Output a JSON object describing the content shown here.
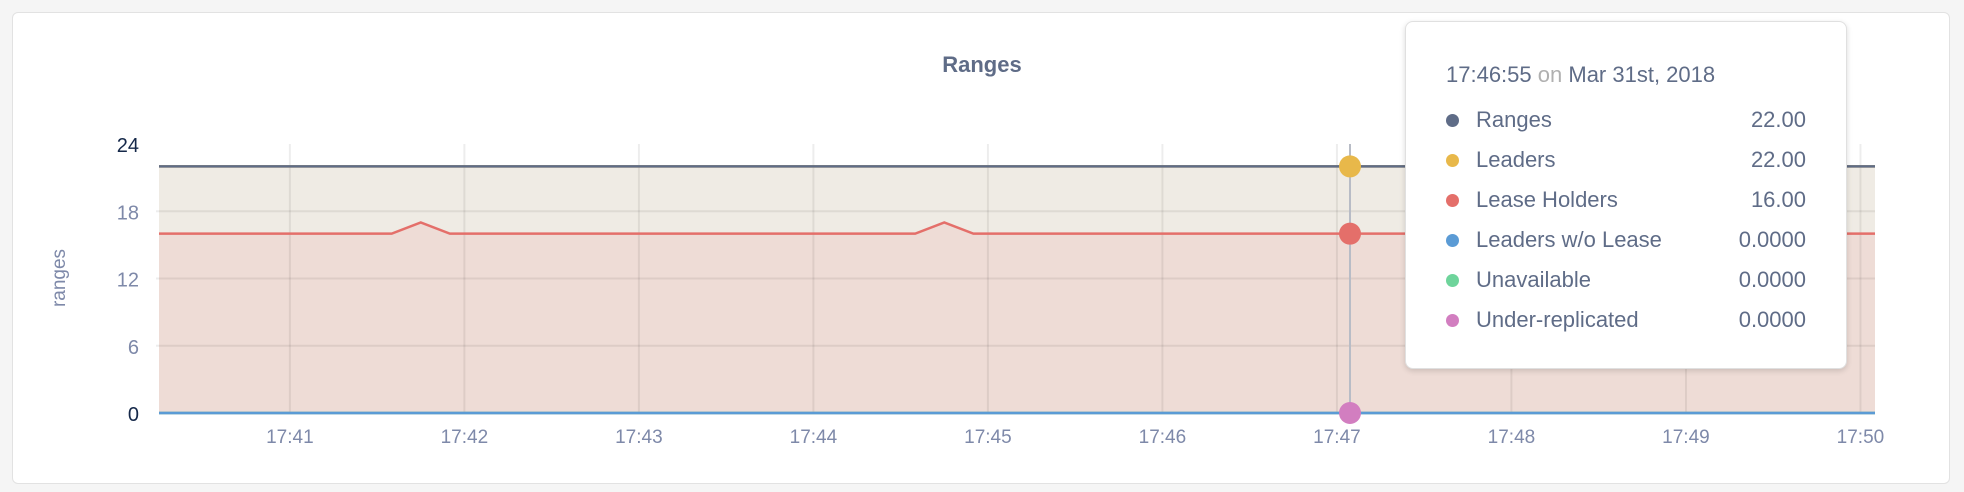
{
  "chart_data": {
    "type": "area",
    "title": "Ranges",
    "ylabel": "ranges",
    "ylim": [
      0,
      24
    ],
    "yticks": [
      "0",
      "6",
      "12",
      "18",
      "24"
    ],
    "xticks": [
      "17:41",
      "17:42",
      "17:43",
      "17:44",
      "17:45",
      "17:46",
      "17:47",
      "17:48",
      "17:49",
      "17:50"
    ],
    "xlim": [
      "17:40:15",
      "17:50:05"
    ],
    "grid": true,
    "series": [
      {
        "name": "Ranges",
        "color": "#5f6c87",
        "points": [
          [
            "17:40:15",
            22
          ],
          [
            "17:50:05",
            22
          ]
        ]
      },
      {
        "name": "Leaders",
        "color": "#e8b84a",
        "fill": "#efebe4",
        "points": [
          [
            "17:40:15",
            22
          ],
          [
            "17:50:05",
            22
          ]
        ]
      },
      {
        "name": "Lease Holders",
        "color": "#e46f6a",
        "fill": "#eedcd6",
        "points": [
          [
            "17:40:15",
            16
          ],
          [
            "17:41:35",
            16
          ],
          [
            "17:41:45",
            17
          ],
          [
            "17:41:55",
            16
          ],
          [
            "17:44:35",
            16
          ],
          [
            "17:44:45",
            17
          ],
          [
            "17:44:55",
            16
          ],
          [
            "17:50:05",
            16
          ]
        ]
      },
      {
        "name": "Leaders w/o Lease",
        "color": "#5b9bd5",
        "points": [
          [
            "17:40:15",
            0
          ],
          [
            "17:50:05",
            0
          ]
        ]
      },
      {
        "name": "Unavailable",
        "color": "#6ed49b",
        "points": [
          [
            "17:40:15",
            0
          ],
          [
            "17:50:05",
            0
          ]
        ]
      },
      {
        "name": "Under-replicated",
        "color": "#d27ec0",
        "points": [
          [
            "17:40:15",
            0
          ],
          [
            "17:50:05",
            0
          ]
        ]
      }
    ],
    "hover_time": "17:46:55"
  },
  "tooltip": {
    "time": "17:46:55",
    "on": "on",
    "date": "Mar 31st, 2018",
    "rows": [
      {
        "name": "Ranges",
        "value": "22.00",
        "color": "#5f6c87"
      },
      {
        "name": "Leaders",
        "value": "22.00",
        "color": "#e8b84a"
      },
      {
        "name": "Lease Holders",
        "value": "16.00",
        "color": "#e46f6a"
      },
      {
        "name": "Leaders w/o Lease",
        "value": "0.0000",
        "color": "#5b9bd5"
      },
      {
        "name": "Unavailable",
        "value": "0.0000",
        "color": "#6ed49b"
      },
      {
        "name": "Under-replicated",
        "value": "0.0000",
        "color": "#d27ec0"
      }
    ]
  }
}
